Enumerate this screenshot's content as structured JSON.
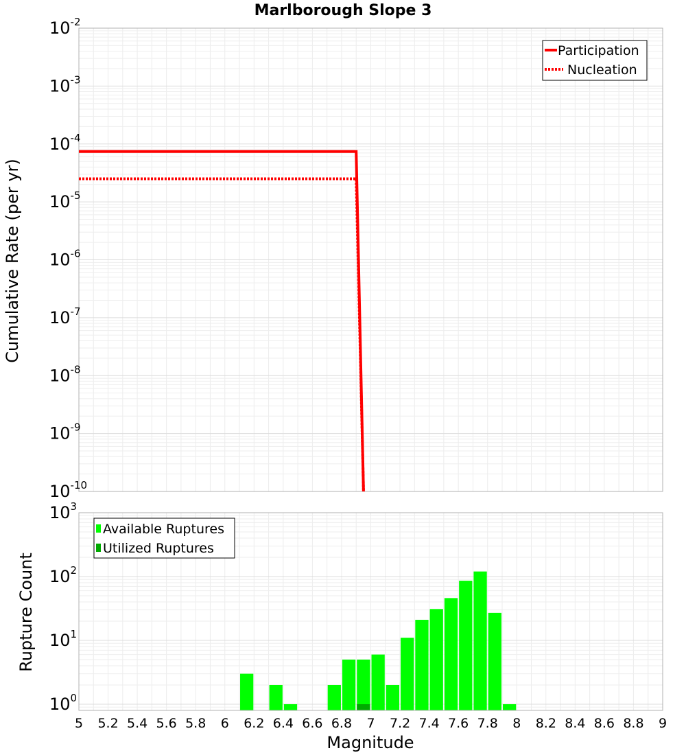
{
  "title": "Marlborough Slope 3",
  "chart_data": [
    {
      "type": "line",
      "ylabel": "Cumulative Rate (per yr)",
      "yscale": "log",
      "ylim": [
        1e-10,
        0.01
      ],
      "ytick_exponents": [
        "-2",
        "-3",
        "-4",
        "-5",
        "-6",
        "-7",
        "-8",
        "-9",
        "-10"
      ],
      "xlim": [
        5,
        9
      ],
      "grid": true,
      "legend": {
        "position": "top-right",
        "entries": [
          "Participation",
          "Nucleation"
        ]
      },
      "series": [
        {
          "name": "Participation",
          "style": "solid",
          "color": "#ff0000",
          "x": [
            5.0,
            6.9,
            6.95
          ],
          "y": [
            7.4e-05,
            7.4e-05,
            1e-10
          ]
        },
        {
          "name": "Nucleation",
          "style": "dotted",
          "color": "#ff0000",
          "x": [
            5.0,
            6.9,
            6.95
          ],
          "y": [
            2.5e-05,
            2.5e-05,
            1e-10
          ]
        }
      ]
    },
    {
      "type": "bar",
      "ylabel": "Rupture Count",
      "xlabel": "Magnitude",
      "yscale": "log",
      "ylim": [
        0.8,
        1000
      ],
      "ytick_exponents": [
        "3",
        "2",
        "1",
        "0"
      ],
      "xlim": [
        5,
        9
      ],
      "bin_width": 0.1,
      "xticks": [
        "5",
        "5.2",
        "5.4",
        "5.6",
        "5.8",
        "6",
        "6.2",
        "6.4",
        "6.6",
        "6.8",
        "7",
        "7.2",
        "7.4",
        "7.6",
        "7.8",
        "8",
        "8.2",
        "8.4",
        "8.6",
        "8.8",
        "9"
      ],
      "grid": true,
      "legend": {
        "position": "top-left",
        "entries": [
          "Available Ruptures",
          "Utilized Ruptures"
        ]
      },
      "series": [
        {
          "name": "Available Ruptures",
          "color": "#00ff00",
          "x": [
            6.15,
            6.35,
            6.45,
            6.75,
            6.85,
            6.95,
            7.05,
            7.15,
            7.25,
            7.35,
            7.45,
            7.55,
            7.65,
            7.75,
            7.85,
            7.95
          ],
          "values": [
            3,
            2,
            1,
            2,
            5,
            5,
            6,
            2,
            11,
            21,
            31,
            46,
            86,
            120,
            27,
            1
          ]
        },
        {
          "name": "Utilized Ruptures",
          "color": "#00aa00",
          "x": [
            6.95
          ],
          "values": [
            1
          ]
        }
      ]
    }
  ]
}
